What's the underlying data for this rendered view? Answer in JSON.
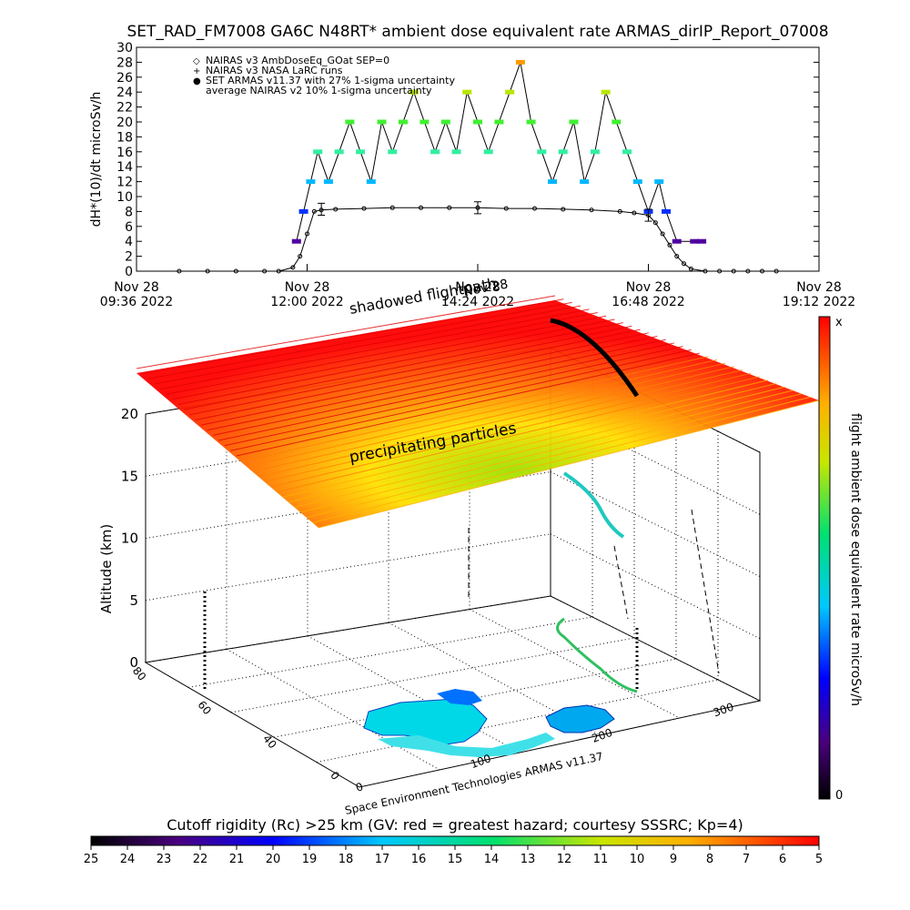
{
  "page": {
    "title": "SET_RAD_FM7008  GA6C N48RT* ambient dose equivalent rate ARMAS_dirIP_Report_07008"
  },
  "chart_data": [
    {
      "type": "scatter",
      "name": "dose-rate-timeseries",
      "ylabel": "dH*(10)/dt microSv/h",
      "ylim": [
        0,
        30
      ],
      "yticks": [
        0,
        2,
        4,
        6,
        8,
        10,
        12,
        14,
        16,
        18,
        20,
        22,
        24,
        26,
        28,
        30
      ],
      "x_ticks": [
        {
          "date": "Nov 28",
          "time": "09:36 2022"
        },
        {
          "date": "Nov 28",
          "time": "12:00 2022"
        },
        {
          "date": "Nov 28",
          "time": "14:24 2022"
        },
        {
          "date": "Nov 28",
          "time": "16:48 2022"
        },
        {
          "date": "Nov 28",
          "time": "19:12 2022"
        }
      ],
      "xlim_hours": [
        9.6,
        19.2
      ],
      "legend": [
        {
          "symbol": "◇",
          "label": "NAIRAS v3 AmbDoseEq_GOat SEP=0"
        },
        {
          "symbol": "+",
          "label": "NAIRAS v3 NASA LaRC runs"
        },
        {
          "symbol": "●",
          "label": "SET ARMAS v11.37 with 27% 1-sigma uncertainty",
          "color": "#0050ff"
        },
        {
          "symbol": "",
          "label": "average NAIRAS v2 10% 1-sigma uncertainty"
        }
      ],
      "legend_position": "top-left",
      "series": [
        {
          "name": "NAIRAS v3 AmbDoseEq_GOat SEP=0",
          "x_hours": [
            10.2,
            10.6,
            11.0,
            11.4,
            11.6,
            11.8,
            11.9,
            12.0,
            12.1,
            12.2,
            12.4,
            12.8,
            13.2,
            13.6,
            14.0,
            14.4,
            14.8,
            15.2,
            15.6,
            16.0,
            16.4,
            16.6,
            16.8,
            16.9,
            17.0,
            17.1,
            17.2,
            17.3,
            17.4,
            17.6,
            17.8,
            18.0,
            18.2,
            18.4,
            18.6
          ],
          "y": [
            0,
            0,
            0,
            0,
            0,
            0.5,
            2,
            5,
            8,
            8.2,
            8.3,
            8.4,
            8.5,
            8.5,
            8.5,
            8.5,
            8.4,
            8.4,
            8.3,
            8.2,
            8.0,
            7.8,
            7.5,
            6.5,
            5,
            3.5,
            2,
            1,
            0.3,
            0,
            0,
            0,
            0,
            0,
            0
          ]
        },
        {
          "name": "SET ARMAS v11.37",
          "x_hours": [
            11.85,
            11.95,
            12.05,
            12.15,
            12.3,
            12.45,
            12.6,
            12.75,
            12.9,
            13.05,
            13.2,
            13.35,
            13.5,
            13.65,
            13.8,
            13.95,
            14.1,
            14.25,
            14.4,
            14.55,
            14.7,
            14.85,
            15.0,
            15.15,
            15.3,
            15.45,
            15.6,
            15.75,
            15.9,
            16.05,
            16.2,
            16.35,
            16.5,
            16.65,
            16.8,
            16.95,
            17.05,
            17.2,
            17.45,
            17.55
          ],
          "y": [
            4,
            8,
            12,
            16,
            12,
            16,
            20,
            16,
            12,
            20,
            16,
            20,
            24,
            20,
            16,
            20,
            16,
            24,
            20,
            16,
            20,
            24,
            28,
            20,
            16,
            12,
            16,
            20,
            12,
            16,
            24,
            20,
            16,
            12,
            8,
            12,
            8,
            4,
            4,
            4
          ]
        }
      ],
      "error_bars": [
        {
          "x_hours": 12.2,
          "y": 8.3,
          "err": 0.8
        },
        {
          "x_hours": 14.4,
          "y": 8.5,
          "err": 0.8
        },
        {
          "x_hours": 16.8,
          "y": 7.5,
          "err": 0.8
        }
      ]
    },
    {
      "type": "surface-3d",
      "name": "flight-path-3d",
      "zlabel": "Altitude (km)",
      "zticks": [
        0,
        5,
        10,
        15,
        20
      ],
      "x_ticks": [
        "0",
        "100",
        "200",
        "300"
      ],
      "y_ticks": [
        "0",
        "40",
        "60",
        "80"
      ],
      "annotations": {
        "shadowed": "shadowed flightpath",
        "date": "Nov 28",
        "precip": "precipitating particles",
        "credit": "Space Environment Technologies ARMAS v11.37"
      },
      "colorbar": {
        "label": "flight ambient dose equivalent rate microSv/h",
        "top": "x",
        "bottom": "0"
      }
    },
    {
      "type": "colorbar",
      "name": "cutoff-rigidity",
      "label": "Cutoff rigidity (Rc) >25 km (GV: red = greatest hazard; courtesy SSSRC; Kp=4)",
      "ticks": [
        25,
        24,
        23,
        22,
        21,
        20,
        19,
        18,
        17,
        16,
        15,
        14,
        13,
        12,
        11,
        10,
        9,
        8,
        7,
        6,
        5
      ]
    }
  ]
}
